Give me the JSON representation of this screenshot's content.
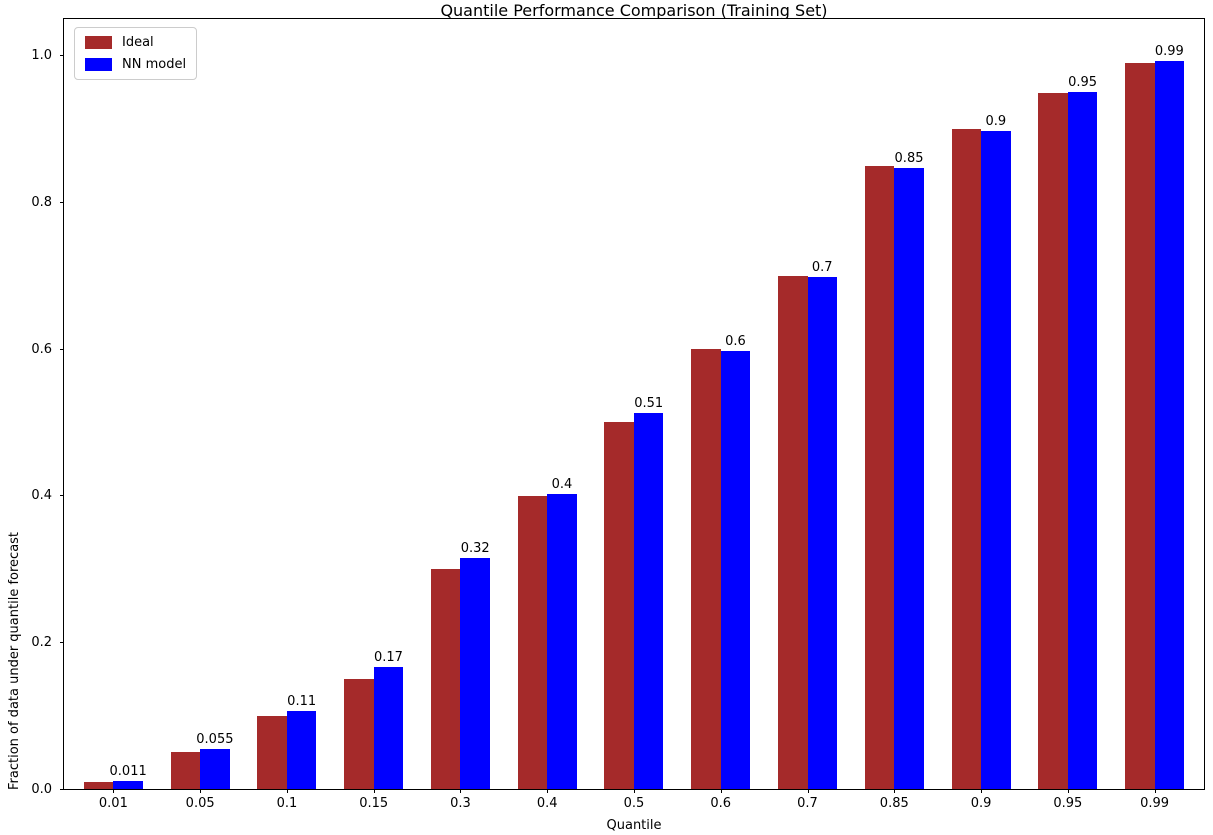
{
  "title": "Quantile Performance Comparison (Training Set)",
  "chart_data": {
    "type": "bar",
    "title": "Quantile Performance Comparison (Training Set)",
    "xlabel": "Quantile",
    "ylabel": "Fraction of data under quantile forecast",
    "categories": [
      "0.01",
      "0.05",
      "0.1",
      "0.15",
      "0.3",
      "0.4",
      "0.5",
      "0.6",
      "0.7",
      "0.85",
      "0.9",
      "0.95",
      "0.99"
    ],
    "series": [
      {
        "name": "Ideal",
        "color": "#a52a2a",
        "values": [
          0.01,
          0.05,
          0.1,
          0.15,
          0.3,
          0.4,
          0.5,
          0.6,
          0.7,
          0.85,
          0.9,
          0.95,
          0.99
        ]
      },
      {
        "name": "NN model",
        "color": "#0000ff",
        "values": [
          0.011,
          0.055,
          0.107,
          0.166,
          0.315,
          0.403,
          0.513,
          0.597,
          0.698,
          0.847,
          0.897,
          0.951,
          0.993
        ],
        "bar_labels": [
          "0.011",
          "0.055",
          "0.11",
          "0.17",
          "0.32",
          "0.4",
          "0.51",
          "0.6",
          "0.7",
          "0.85",
          "0.9",
          "0.95",
          "0.99"
        ]
      }
    ],
    "ylim": [
      0,
      1.0503
    ],
    "yticks": [
      {
        "value": 0.0,
        "label": "0.0"
      },
      {
        "value": 0.2,
        "label": "0.2"
      },
      {
        "value": 0.4,
        "label": "0.4"
      },
      {
        "value": 0.6,
        "label": "0.6"
      },
      {
        "value": 0.8,
        "label": "0.8"
      },
      {
        "value": 1.0,
        "label": "1.0"
      }
    ],
    "legend_position": "upper left",
    "grid": false
  }
}
